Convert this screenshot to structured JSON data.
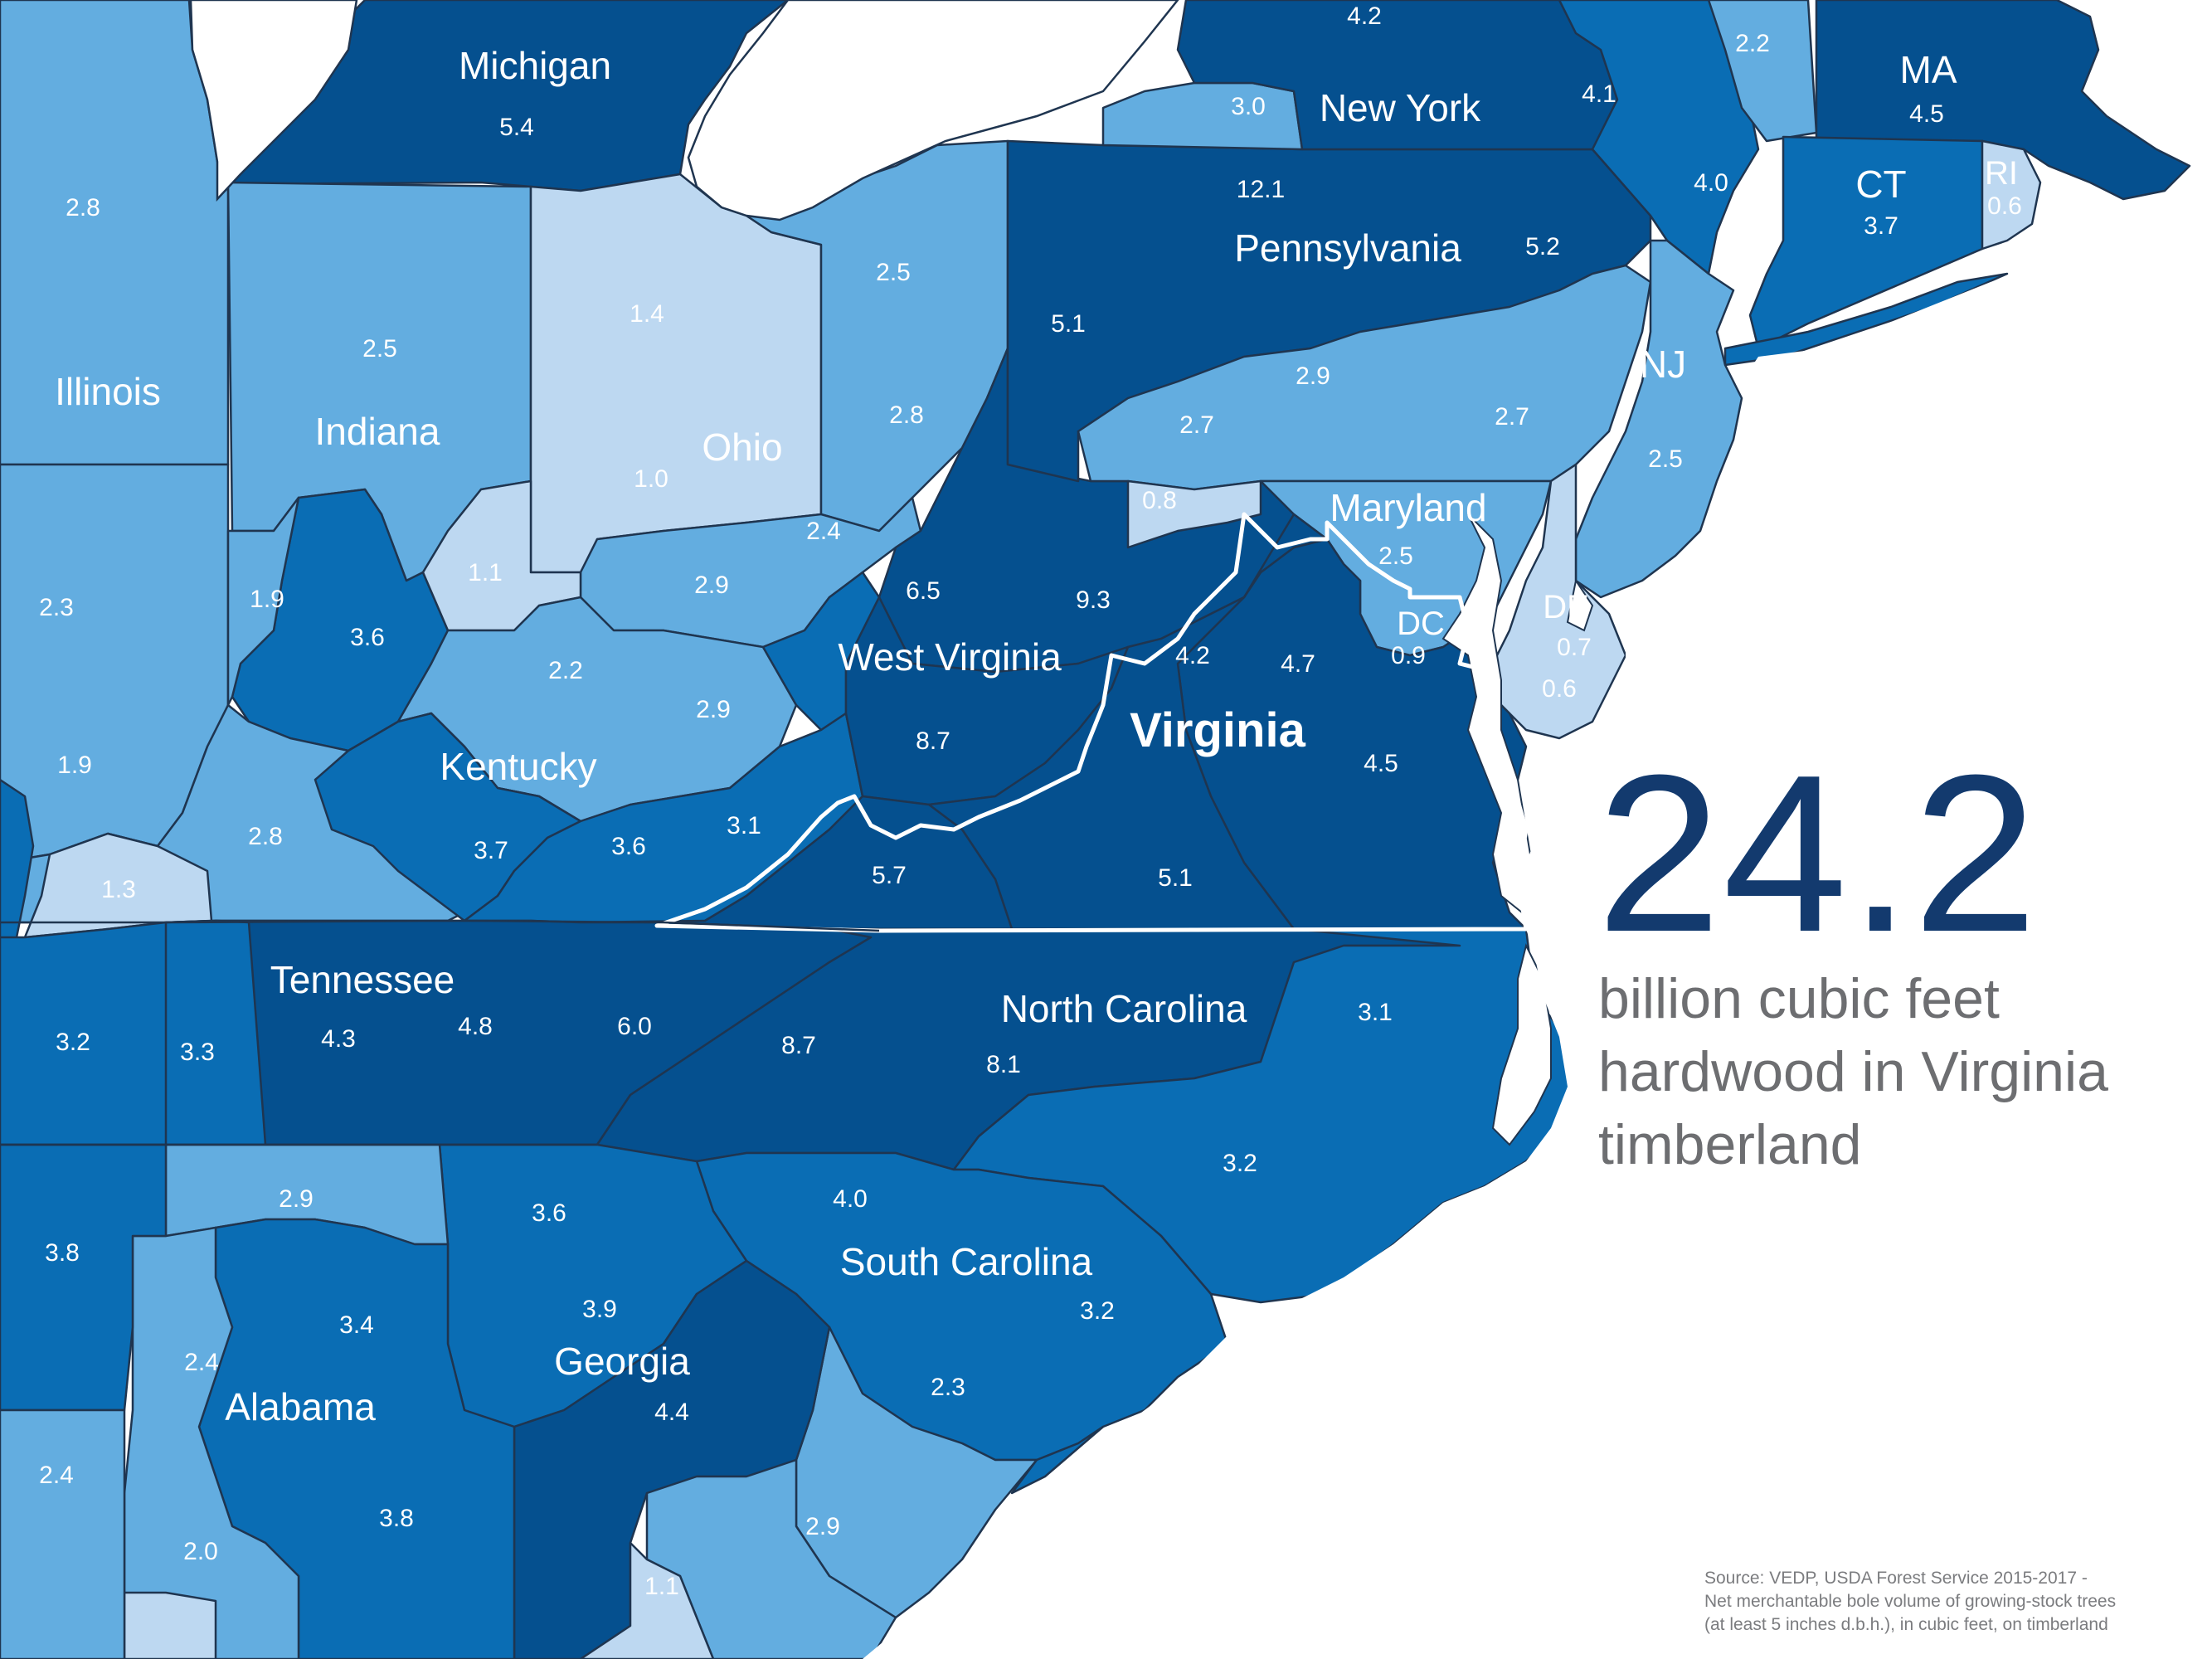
{
  "colors": {
    "very_light": "#bdd8f1",
    "light": "#63ade0",
    "medium": "#0a6db4",
    "dark": "#05508f",
    "background": "#ffffff",
    "headline": "#133a6e",
    "subtext": "#6d6e71",
    "source_text": "#7b7c7f"
  },
  "headline": {
    "value": "24.2",
    "line1": "billion cubic feet",
    "line2": "hardwood in Virginia",
    "line3": "timberland"
  },
  "source": {
    "line1": "Source: VEDP, USDA Forest Service 2015-2017 -",
    "line2": "Net merchantable bole volume of growing-stock trees",
    "line3": "(at least 5 inches d.b.h.), in cubic feet, on timberland"
  },
  "states": {
    "michigan": "Michigan",
    "new_york": "New York",
    "ma": "MA",
    "ct": "CT",
    "ri": "RI",
    "pennsylvania": "Pennsylvania",
    "nj": "NJ",
    "illinois": "Illinois",
    "indiana": "Indiana",
    "ohio": "Ohio",
    "maryland": "Maryland",
    "dc": "DC",
    "de": "DE",
    "west_virginia": "West Virginia",
    "virginia": "Virginia",
    "kentucky": "Kentucky",
    "tennessee": "Tennessee",
    "north_carolina": "North Carolina",
    "south_carolina": "South Carolina",
    "georgia": "Georgia",
    "alabama": "Alabama"
  },
  "region_values": [
    "4.2",
    "5.4",
    "3.0",
    "4.1",
    "2.2",
    "4.5",
    "4.0",
    "3.7",
    "0.6",
    "12.1",
    "5.2",
    "2.8",
    "2.5",
    "1.4",
    "2.5",
    "5.1",
    "2.8",
    "2.9",
    "2.7",
    "2.7",
    "1.0",
    "2.5",
    "0.8",
    "2.5",
    "1.1",
    "2.4",
    "1.9",
    "2.3",
    "6.5",
    "9.3",
    "2.9",
    "3.6",
    "0.9",
    "0.7",
    "4.2",
    "4.7",
    "2.2",
    "2.9",
    "0.6",
    "8.7",
    "1.9",
    "4.5",
    "3.1",
    "3.6",
    "3.7",
    "2.8",
    "1.3",
    "5.7",
    "5.1",
    "3.2",
    "3.3",
    "4.3",
    "4.8",
    "6.0",
    "8.7",
    "8.1",
    "3.1",
    "2.9",
    "4.0",
    "3.2",
    "3.6",
    "3.8",
    "3.4",
    "3.9",
    "3.2",
    "2.4",
    "4.4",
    "2.3",
    "2.4",
    "3.8",
    "2.9",
    "2.0",
    "1.1"
  ]
}
